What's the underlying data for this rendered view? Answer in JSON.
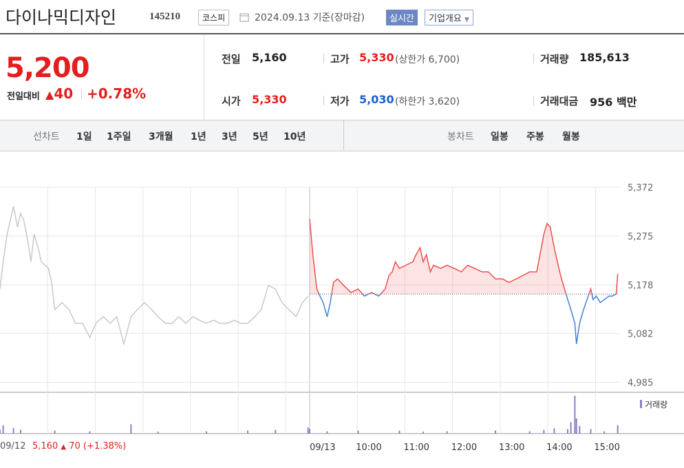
{
  "header": {
    "name": "다이나믹디자인",
    "code": "145210",
    "market": "코스피",
    "date": "2024.09.13 기준(장마감)",
    "realtime": "실시간",
    "company": "기업개요"
  },
  "quote": {
    "price": "5,200",
    "change_label": "전일대비",
    "change": "40",
    "change_rate": "+0.78%"
  },
  "stats": [
    {
      "label": "전일",
      "value": "5,160"
    },
    {
      "label": "고가",
      "value": "5,330",
      "note": "(상한가 6,700)"
    },
    {
      "label": "거래량",
      "value": "185,613"
    },
    {
      "label": "시가",
      "value": "5,330"
    },
    {
      "label": "저가",
      "value": "5,030",
      "note": "(하한가 3,620)"
    },
    {
      "label": "거래대금",
      "value": "956 백만"
    }
  ],
  "tabs": {
    "line_label": "선차트",
    "periods": [
      "1일",
      "1주일",
      "3개월",
      "1년",
      "3년",
      "5년",
      "10년"
    ],
    "candle_label": "봉차트",
    "candle_periods": [
      "일봉",
      "주봉",
      "월봉"
    ]
  },
  "prev_summary": {
    "close": "5,160",
    "change": "70",
    "rate": "(+1.38%)"
  },
  "chart_data": {
    "type": "line",
    "ylim": [
      4965,
      5372
    ],
    "yticks": [
      {
        "value": 5372,
        "label": "5,372"
      },
      {
        "value": 5275,
        "label": "5,275"
      },
      {
        "value": 5178,
        "label": "5,178"
      },
      {
        "value": 5082,
        "label": "5,082"
      },
      {
        "value": 4985,
        "label": "4,985"
      }
    ],
    "xlim": [
      540,
      930
    ],
    "xticks": [
      {
        "value": 600,
        "label": "10:00"
      },
      {
        "value": 660,
        "label": "11:00"
      },
      {
        "value": 720,
        "label": "12:00"
      },
      {
        "value": 780,
        "label": "13:00"
      },
      {
        "value": 840,
        "label": "14:00"
      },
      {
        "value": 900,
        "label": "15:00"
      }
    ],
    "reference_line": 5160,
    "grid": true,
    "series": [
      {
        "name": "09/12",
        "color": "#c8c8c8",
        "x": [
          540,
          544,
          549,
          557,
          562,
          566,
          570,
          575,
          579,
          583,
          588,
          592,
          601,
          605,
          609,
          618,
          627,
          635,
          644,
          653,
          661,
          670,
          679,
          687,
          696,
          705,
          713,
          722,
          731,
          739,
          748,
          757,
          765,
          774,
          783,
          791,
          800,
          809,
          817,
          826,
          835,
          843,
          852,
          861,
          869,
          874,
          878,
          887,
          895,
          904,
          913,
          921,
          928
        ],
        "values": [
          5170,
          5224,
          5279,
          5334,
          5293,
          5320,
          5306,
          5265,
          5224,
          5279,
          5252,
          5224,
          5211,
          5183,
          5129,
          5143,
          5129,
          5102,
          5102,
          5074,
          5102,
          5115,
          5102,
          5115,
          5061,
          5115,
          5129,
          5143,
          5129,
          5115,
          5102,
          5102,
          5115,
          5102,
          5115,
          5108,
          5102,
          5108,
          5102,
          5102,
          5108,
          5102,
          5102,
          5115,
          5129,
          5156,
          5177,
          5170,
          5143,
          5129,
          5115,
          5143,
          5156
        ]
      },
      {
        "name": "09/13",
        "up_color": "#f04c4c",
        "down_color": "#3e7fd8",
        "x": [
          540,
          544,
          549,
          553,
          557,
          562,
          566,
          570,
          575,
          583,
          592,
          601,
          609,
          618,
          627,
          635,
          640,
          644,
          648,
          653,
          661,
          670,
          674,
          679,
          683,
          687,
          692,
          696,
          705,
          713,
          722,
          731,
          739,
          748,
          757,
          765,
          774,
          783,
          791,
          800,
          809,
          817,
          826,
          835,
          839,
          843,
          848,
          852,
          856,
          861,
          865,
          869,
          874,
          876,
          880,
          885,
          888,
          894,
          897,
          901,
          906,
          911,
          917,
          921,
          926,
          928
        ],
        "values": [
          5309,
          5238,
          5170,
          5156,
          5143,
          5115,
          5143,
          5183,
          5190,
          5177,
          5163,
          5170,
          5156,
          5163,
          5156,
          5170,
          5197,
          5204,
          5224,
          5211,
          5217,
          5224,
          5238,
          5252,
          5224,
          5238,
          5204,
          5217,
          5211,
          5217,
          5211,
          5204,
          5217,
          5211,
          5204,
          5204,
          5190,
          5190,
          5183,
          5190,
          5197,
          5204,
          5204,
          5279,
          5300,
          5293,
          5252,
          5224,
          5197,
          5170,
          5149,
          5129,
          5102,
          5061,
          5102,
          5129,
          5143,
          5170,
          5149,
          5156,
          5143,
          5149,
          5156,
          5156,
          5160,
          5200
        ]
      }
    ],
    "volume": {
      "name": "거래량",
      "color": "#8c7fc8",
      "ylim": [
        0,
        100
      ],
      "days": [
        {
          "x": [
            540,
            544,
            557,
            566,
            609,
            653,
            705,
            739,
            800,
            852,
            887,
            928
          ],
          "values": [
            10,
            22,
            15,
            10,
            8,
            6,
            25,
            5,
            6,
            8,
            10,
            16
          ]
        },
        {
          "x": [
            540,
            562,
            601,
            653,
            683,
            713,
            774,
            817,
            835,
            848,
            865,
            869,
            874,
            876,
            880,
            894,
            911,
            928
          ],
          "values": [
            12,
            6,
            8,
            8,
            5,
            6,
            8,
            6,
            10,
            14,
            12,
            30,
            100,
            40,
            20,
            12,
            6,
            22
          ]
        }
      ]
    }
  }
}
